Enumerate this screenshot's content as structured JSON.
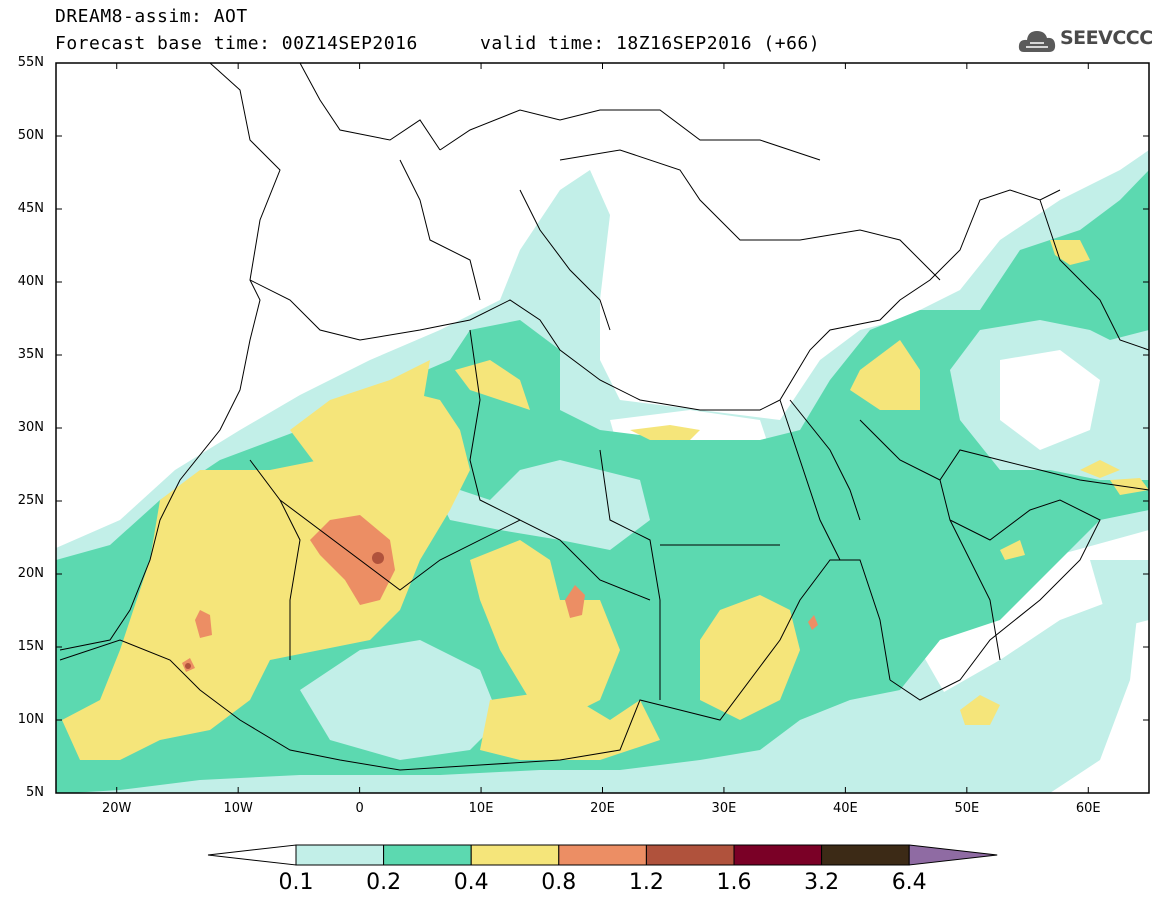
{
  "header": {
    "title_line1": "DREAM8-assim: AOT",
    "title_line2": "Forecast base time: 00Z14SEP2016",
    "valid_time": "valid time: 18Z16SEP2016 (+66)",
    "logo_text": "SEEVCCC"
  },
  "map": {
    "variable": "AOT",
    "lon_range": [
      -25,
      65
    ],
    "lat_range": [
      5,
      55
    ],
    "lat_labels": [
      "55N",
      "50N",
      "45N",
      "40N",
      "35N",
      "30N",
      "25N",
      "20N",
      "15N",
      "10N",
      "5N"
    ],
    "lon_labels": [
      "20W",
      "10W",
      "0",
      "10E",
      "20E",
      "30E",
      "40E",
      "50E",
      "60E"
    ]
  },
  "colorbar": {
    "levels": [
      "0.1",
      "0.2",
      "0.4",
      "0.8",
      "1.2",
      "1.6",
      "3.2",
      "6.4"
    ],
    "colors": [
      "#ffffff",
      "#c2efe8",
      "#5cd9b0",
      "#f5e57a",
      "#ec8e64",
      "#b0523c",
      "#7a0026",
      "#3c2a16",
      "#8f6ba3"
    ]
  }
}
